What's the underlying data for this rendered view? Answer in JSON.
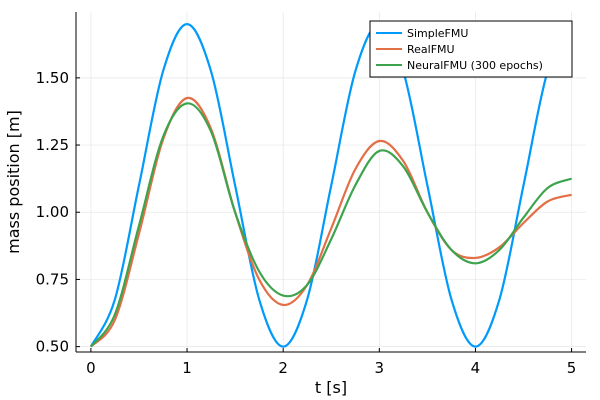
{
  "chart_data": {
    "type": "line",
    "title": "",
    "xlabel": "t [s]",
    "ylabel": "mass position [m]",
    "xlim": [
      0,
      5
    ],
    "ylim": [
      0.48,
      1.745
    ],
    "xticks": [
      0,
      1,
      2,
      3,
      4,
      5
    ],
    "yticks": [
      0.5,
      0.75,
      1.0,
      1.25,
      1.5
    ],
    "xtick_labels": [
      "0",
      "1",
      "2",
      "3",
      "4",
      "5"
    ],
    "ytick_labels": [
      "0.50",
      "0.75",
      "1.00",
      "1.25",
      "1.50"
    ],
    "grid": true,
    "legend_position": "top-right",
    "series": [
      {
        "name": "SimpleFMU",
        "color": "#009AFA",
        "x": [
          0,
          0.25,
          0.5,
          0.75,
          1.0,
          1.25,
          1.5,
          1.75,
          2.0,
          2.25,
          2.5,
          2.75,
          3.0,
          3.25,
          3.5,
          3.75,
          4.0,
          4.25,
          4.5,
          4.75,
          5.0
        ],
        "y": [
          0.5,
          0.676,
          1.1,
          1.524,
          1.7,
          1.524,
          1.1,
          0.676,
          0.5,
          0.676,
          1.1,
          1.524,
          1.7,
          1.524,
          1.1,
          0.676,
          0.5,
          0.676,
          1.1,
          1.524,
          1.7
        ]
      },
      {
        "name": "RealFMU",
        "color": "#E26F46",
        "x": [
          0,
          0.25,
          0.5,
          0.75,
          1.0,
          1.25,
          1.5,
          1.75,
          2.0,
          2.25,
          2.5,
          2.75,
          3.0,
          3.25,
          3.5,
          3.75,
          4.0,
          4.25,
          4.5,
          4.75,
          5.0
        ],
        "y": [
          0.5,
          0.6,
          0.92,
          1.27,
          1.425,
          1.31,
          1.0,
          0.75,
          0.655,
          0.73,
          0.94,
          1.16,
          1.265,
          1.19,
          1.0,
          0.86,
          0.83,
          0.87,
          0.96,
          1.04,
          1.065
        ]
      },
      {
        "name": "NeuralFMU (300 epochs)",
        "color": "#3DA44D",
        "x": [
          0,
          0.25,
          0.5,
          0.75,
          1.0,
          1.25,
          1.5,
          1.75,
          2.0,
          2.25,
          2.5,
          2.75,
          3.0,
          3.25,
          3.5,
          3.75,
          4.0,
          4.25,
          4.5,
          4.75,
          5.0
        ],
        "y": [
          0.5,
          0.62,
          0.95,
          1.28,
          1.405,
          1.3,
          1.0,
          0.78,
          0.69,
          0.73,
          0.9,
          1.1,
          1.228,
          1.17,
          1.0,
          0.86,
          0.81,
          0.86,
          0.98,
          1.09,
          1.125
        ]
      }
    ]
  }
}
